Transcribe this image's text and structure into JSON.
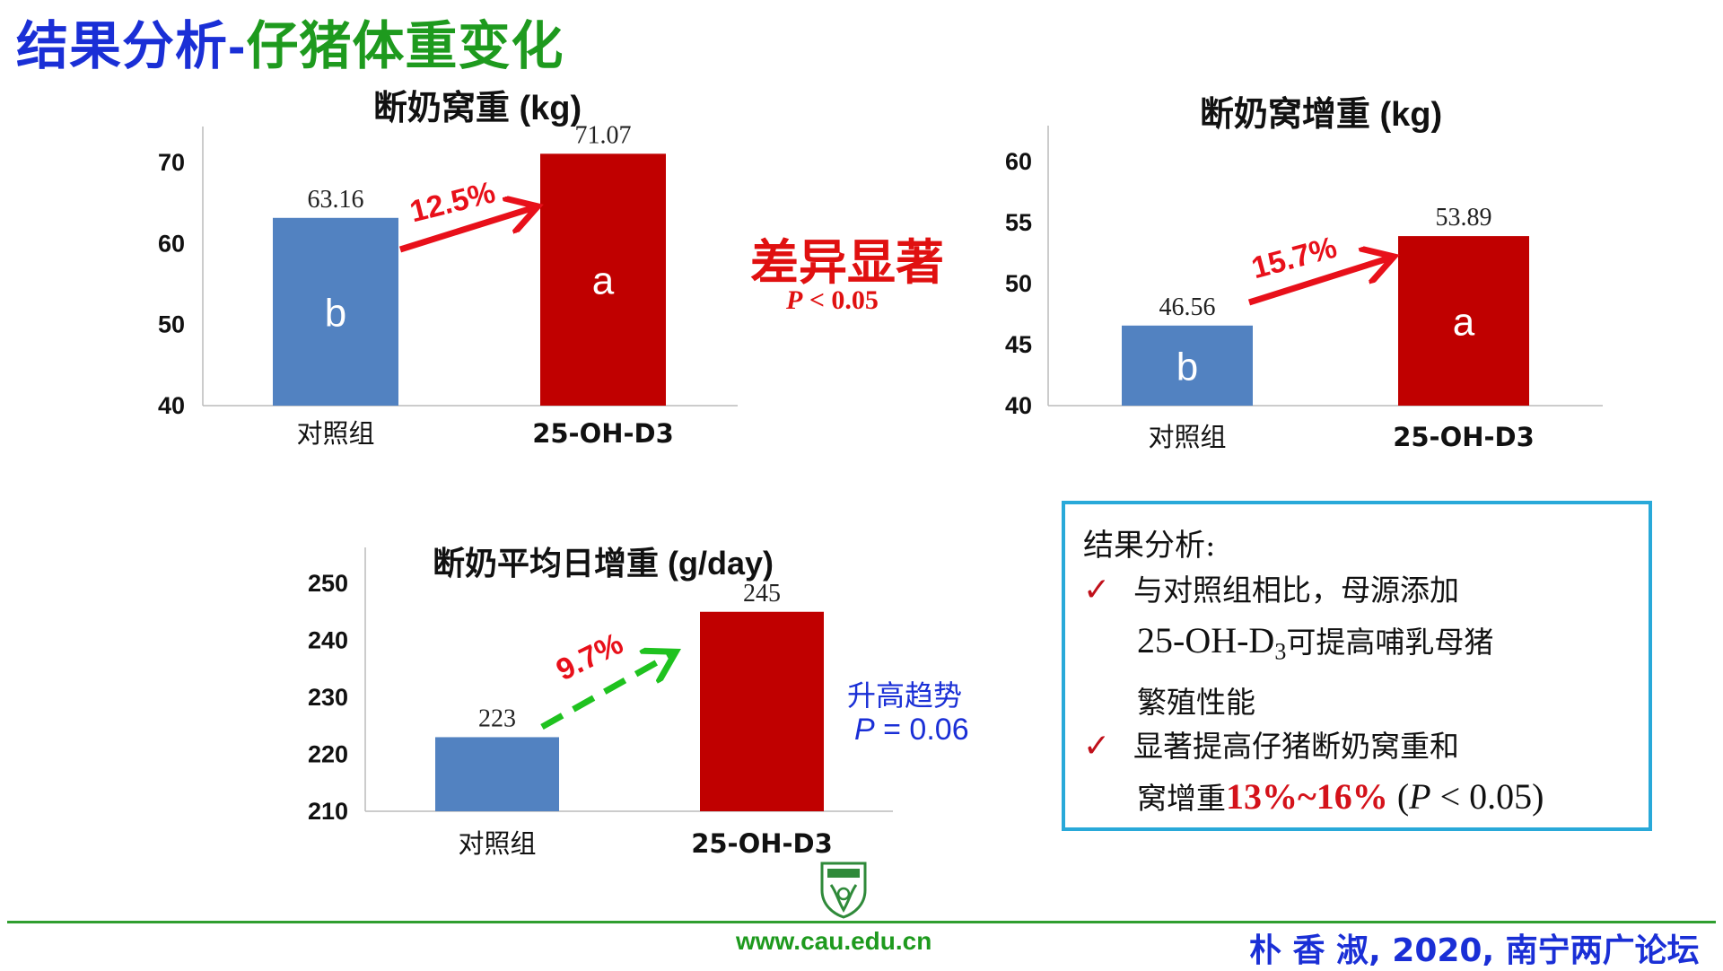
{
  "slide": {
    "title_part1": "结果分析-",
    "title_part2": "仔猪体重变化",
    "colors": {
      "title_blue": "#1a2fd6",
      "title_green": "#1e9a1e",
      "bar_control": "#5282c1",
      "bar_treatment": "#c00000",
      "accent_red": "#e01010",
      "box_border": "#29a9d9"
    }
  },
  "chart_data": [
    {
      "type": "bar",
      "title": "断奶窝重 (kg)",
      "categories": [
        "对照组",
        "25-OH-D3"
      ],
      "values": [
        63.16,
        71.07
      ],
      "value_labels": [
        "63.16",
        "71.07"
      ],
      "letters": [
        "b",
        "a"
      ],
      "ylim": [
        40,
        70
      ],
      "yticks": [
        "40",
        "50",
        "60",
        "70"
      ],
      "increase_label": "12.5%",
      "arrow_style": "solid-red",
      "grid": false
    },
    {
      "type": "bar",
      "title": "断奶窝增重 (kg)",
      "categories": [
        "对照组",
        "25-OH-D3"
      ],
      "values": [
        46.56,
        53.89
      ],
      "value_labels": [
        "46.56",
        "53.89"
      ],
      "letters": [
        "b",
        "a"
      ],
      "ylim": [
        40,
        60
      ],
      "yticks": [
        "40",
        "45",
        "50",
        "55",
        "60"
      ],
      "increase_label": "15.7%",
      "arrow_style": "solid-red",
      "grid": false
    },
    {
      "type": "bar",
      "title": "断奶平均日增重 (g/day)",
      "categories": [
        "对照组",
        "25-OH-D3"
      ],
      "values": [
        223,
        245
      ],
      "value_labels": [
        "223",
        "245"
      ],
      "letters": [
        "",
        ""
      ],
      "ylim": [
        210,
        250
      ],
      "yticks": [
        "210",
        "220",
        "230",
        "240",
        "250"
      ],
      "increase_label": "9.7%",
      "arrow_style": "dashed-green",
      "grid": false
    }
  ],
  "significance": {
    "label": "差异显著",
    "p_symbol": "P",
    "p_rest": " < 0.05"
  },
  "trend": {
    "label": "升高趋势",
    "p_symbol": "P",
    "p_rest": " = 0.06"
  },
  "result_box": {
    "title": "结果分析:",
    "check": "✓",
    "item1_line1": "与对照组相比，母源添加",
    "item1_line2_a": "25-OH-D",
    "item1_line2_sub": "3",
    "item1_line2_b": "可提高哺乳母猪",
    "item1_line3": "繁殖性能",
    "item2_line1": "显著提高仔猪断奶窝重和",
    "item2_line2_a": "窝增重",
    "item2_line2_red": "13%~16%",
    "item2_line2_b1": " (",
    "item2_line2_p": "P",
    "item2_line2_b2": " < 0.05)"
  },
  "footer": {
    "url": "www.cau.edu.cn",
    "credit": "朴 香 淑, 2020, 南宁两广论坛",
    "logo_icon": "university-shield-icon"
  }
}
